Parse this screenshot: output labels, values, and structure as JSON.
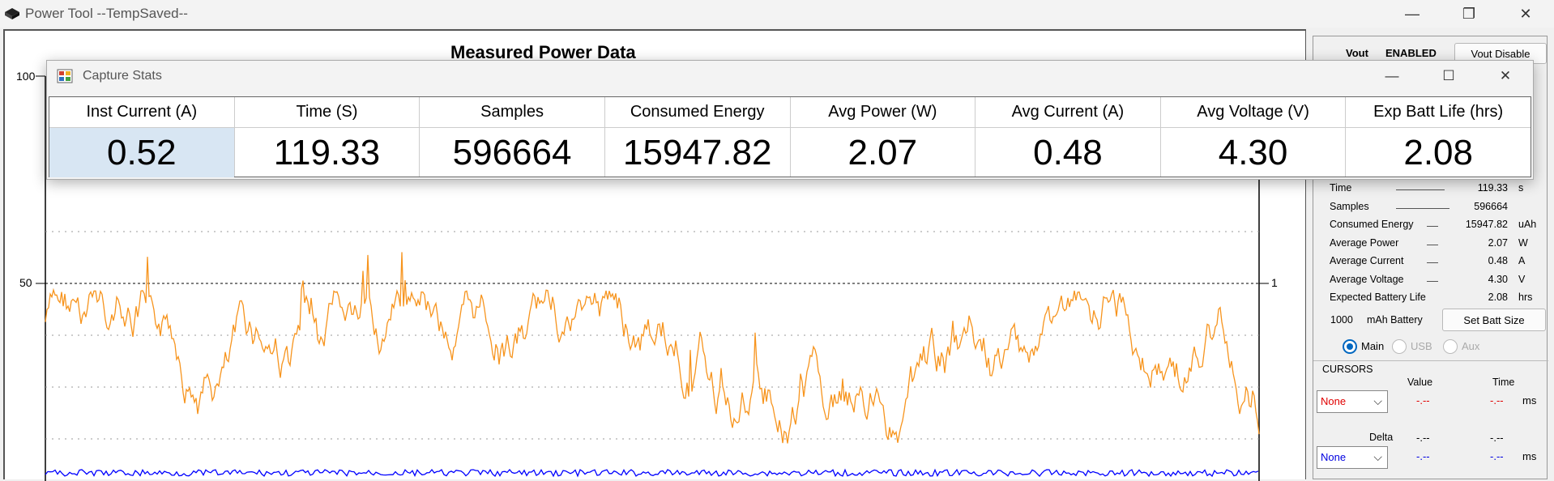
{
  "app": {
    "title": "Power Tool --TempSaved--",
    "icon": "power-tool-icon"
  },
  "window_controls": {
    "minimize": "—",
    "restore": "❐",
    "close": "✕"
  },
  "plot": {
    "title": "Measured Power Data",
    "left_ticks": [
      "100",
      "50"
    ],
    "right_ticks": [
      "1"
    ]
  },
  "right_panel": {
    "vout_label": "Vout",
    "vout_state": "ENABLED",
    "vout_disable_button": "Vout Disable",
    "stats": [
      {
        "label": "Time",
        "value": "119.33",
        "unit": "s"
      },
      {
        "label": "Samples",
        "value": "596664",
        "unit": ""
      },
      {
        "label": "Consumed Energy",
        "value": "15947.82",
        "unit": "uAh"
      },
      {
        "label": "Average Power",
        "value": "2.07",
        "unit": "W"
      },
      {
        "label": "Average Current",
        "value": "0.48",
        "unit": "A"
      },
      {
        "label": "Average Voltage",
        "value": "4.30",
        "unit": "V"
      },
      {
        "label": "Expected Battery Life",
        "value": "2.08",
        "unit": "hrs"
      }
    ],
    "battery_size": "1000",
    "battery_unit": "mAh Battery",
    "set_batt_button": "Set Batt Size",
    "channels": [
      {
        "label": "Main",
        "selected": true
      },
      {
        "label": "USB",
        "selected": false
      },
      {
        "label": "Aux",
        "selected": false
      }
    ],
    "cursors": {
      "title": "CURSORS",
      "value_header": "Value",
      "time_header": "Time",
      "delta_label": "Delta",
      "cursor1": {
        "selection": "None",
        "value": "-.--",
        "time": "-.--",
        "unit": "ms",
        "color": "#e00000"
      },
      "delta": {
        "value": "-.--",
        "time": "-.--"
      },
      "cursor2": {
        "selection": "None",
        "value": "-.--",
        "time": "-.--",
        "unit": "ms",
        "color": "#0000e0"
      }
    }
  },
  "dialog": {
    "title": "Capture Stats",
    "icon": "capture-stats-icon",
    "columns": [
      {
        "header": "Inst Current (A)",
        "value": "0.52",
        "selected": true
      },
      {
        "header": "Time (S)",
        "value": "119.33"
      },
      {
        "header": "Samples",
        "value": "596664"
      },
      {
        "header": "Consumed Energy",
        "value": "15947.82"
      },
      {
        "header": "Avg Power (W)",
        "value": "2.07"
      },
      {
        "header": "Avg Current (A)",
        "value": "0.48"
      },
      {
        "header": "Avg Voltage (V)",
        "value": "4.30"
      },
      {
        "header": "Exp Batt Life (hrs)",
        "value": "2.08"
      }
    ]
  },
  "colors": {
    "current_trace": "#f7941d",
    "voltage_trace": "#0000ff",
    "selected_cell": "#d8e6f3"
  }
}
